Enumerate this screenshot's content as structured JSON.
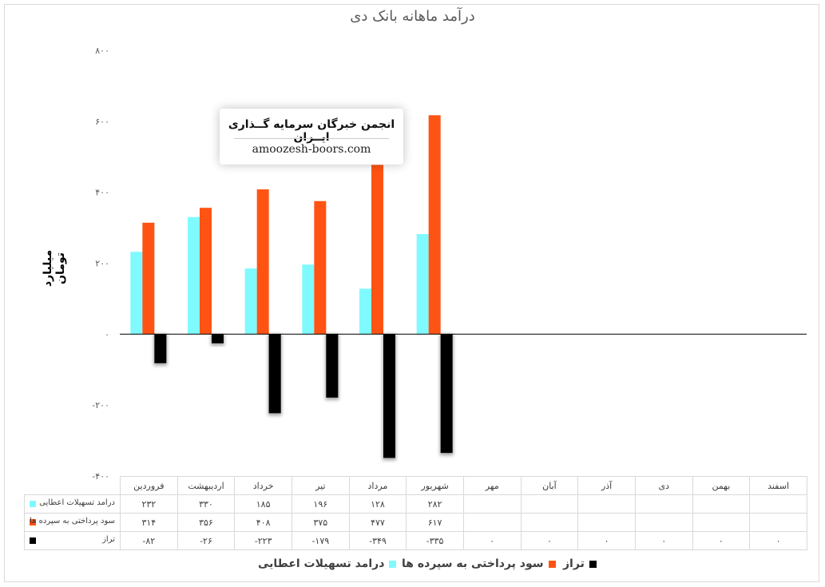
{
  "chart_data": {
    "type": "bar",
    "title": "درآمد ماهانه بانک دی",
    "ylabel": "میلیارد تومان",
    "ylim": [
      -400,
      800
    ],
    "yticks": [
      "-۴۰۰",
      "-۲۰۰",
      "۰",
      "۲۰۰",
      "۴۰۰",
      "۶۰۰",
      "۸۰۰"
    ],
    "ytick_values": [
      -400,
      -200,
      0,
      200,
      400,
      600,
      800
    ],
    "grid": false,
    "legend_position": "bottom",
    "categories": [
      "فروردین",
      "اردیبهشت",
      "خرداد",
      "تیر",
      "مرداد",
      "شهریور",
      "مهر",
      "آبان",
      "آذر",
      "دی",
      "بهمن",
      "اسفند"
    ],
    "series": [
      {
        "name": "درامد تسهیلات اعطایی",
        "legend_label": "درامد تسهیلات اعطایی",
        "table_label": "درامد تسهیلات اعطایی",
        "color": "#7ffaff",
        "values": [
          232,
          330,
          185,
          196,
          128,
          282,
          null,
          null,
          null,
          null,
          null,
          null
        ],
        "labels": [
          "۲۳۲",
          "۳۳۰",
          "۱۸۵",
          "۱۹۶",
          "۱۲۸",
          "۲۸۲",
          "",
          "",
          "",
          "",
          "",
          ""
        ]
      },
      {
        "name": "سود پرداختی به سپرده ها",
        "legend_label": "سود پرداختی به سپرده ها",
        "table_label": "سود پرداختی به سپرده ها",
        "color": "#ff5314",
        "values": [
          314,
          356,
          408,
          375,
          477,
          617,
          null,
          null,
          null,
          null,
          null,
          null
        ],
        "labels": [
          "۳۱۴",
          "۳۵۶",
          "۴۰۸",
          "۳۷۵",
          "۴۷۷",
          "۶۱۷",
          "",
          "",
          "",
          "",
          "",
          ""
        ]
      },
      {
        "name": "تراز",
        "legend_label": "تراز",
        "table_label": "تراز",
        "color": "#000000",
        "values": [
          -82,
          -26,
          -223,
          -179,
          -349,
          -335,
          0,
          0,
          0,
          0,
          0,
          0
        ],
        "labels": [
          "-۸۲",
          "-۲۶",
          "-۲۲۳",
          "-۱۷۹",
          "-۳۴۹",
          "-۳۳۵",
          "۰",
          "۰",
          "۰",
          "۰",
          "۰",
          "۰"
        ]
      }
    ]
  },
  "watermark": {
    "title": "انجمن خبرگان سرمایه گــذاری ایــران",
    "url": "amoozesh-boors.com"
  }
}
